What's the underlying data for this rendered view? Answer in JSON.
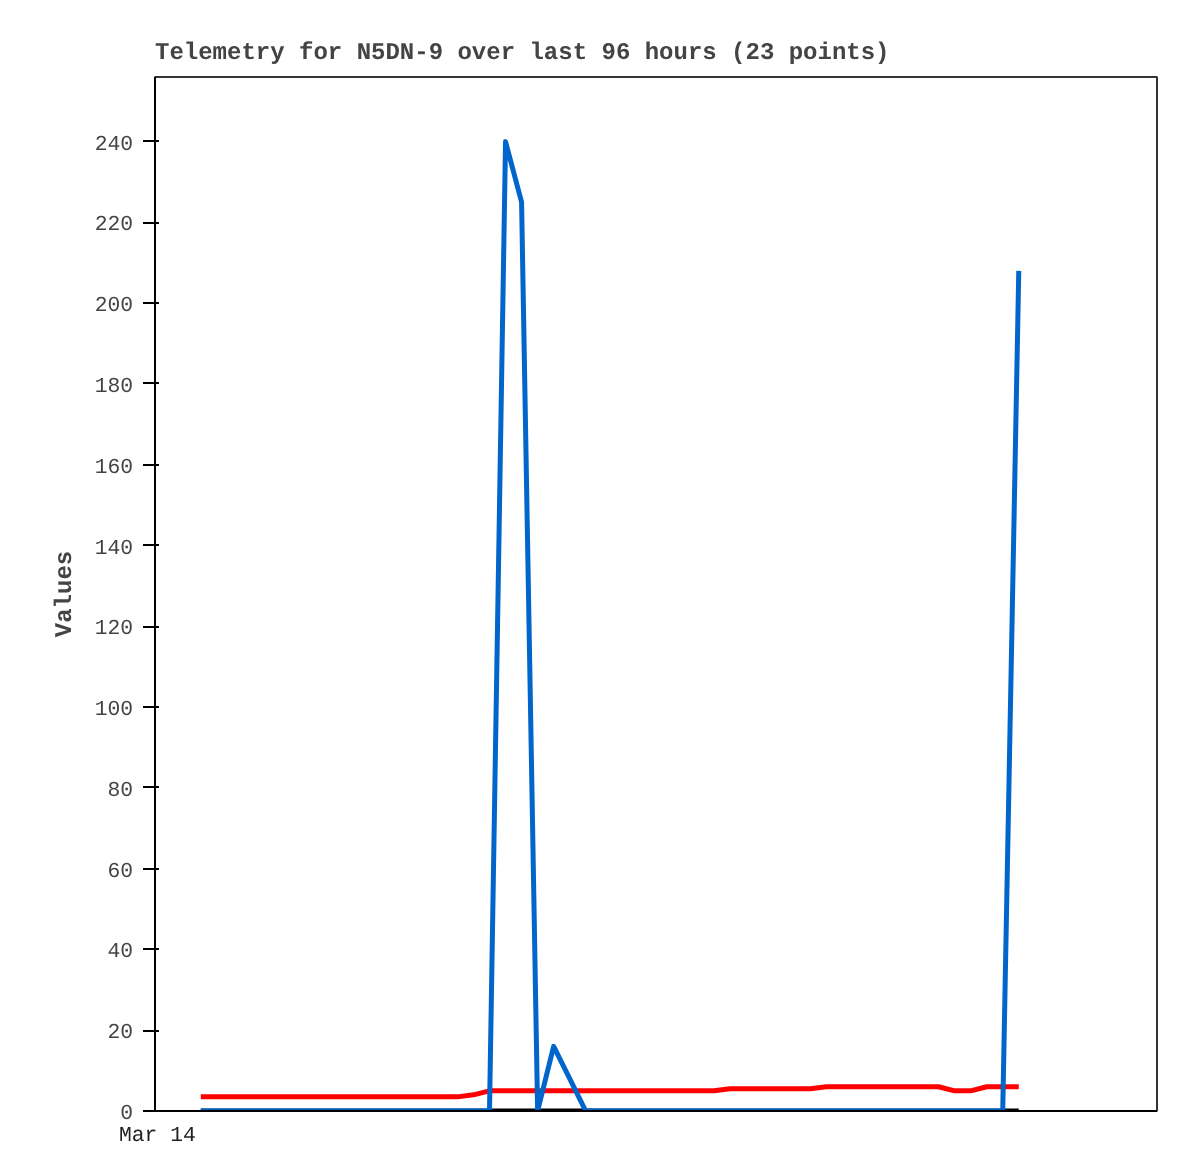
{
  "chart_data": {
    "type": "line",
    "title": "Telemetry for N5DN-9 over last 96 hours (23 points)",
    "ylabel": "Values",
    "annotations": [
      "Mar 14"
    ],
    "categories": [
      null,
      null,
      null,
      null,
      null,
      null,
      null,
      null,
      null,
      null,
      null,
      null,
      null,
      null,
      null,
      null,
      null,
      null,
      null,
      null,
      null,
      null,
      null,
      null,
      null,
      null,
      null,
      null,
      null,
      null,
      null,
      null,
      null,
      null,
      null,
      null,
      null,
      null,
      null,
      null,
      null,
      null,
      null,
      null,
      null,
      null,
      null,
      null,
      null,
      null,
      null,
      null
    ],
    "series": [
      {
        "color": "#000000",
        "values": [
          0,
          0,
          0,
          0,
          0,
          0,
          0,
          0,
          0,
          0,
          0,
          0,
          0,
          0,
          0,
          0,
          0,
          0,
          0,
          0,
          0,
          0,
          0,
          0,
          0,
          0,
          0,
          0,
          0,
          0,
          0,
          0,
          0,
          0,
          0,
          0,
          0,
          0,
          0,
          0,
          0,
          0,
          0,
          0,
          0,
          0,
          0,
          0,
          0,
          0,
          0,
          0
        ]
      },
      {
        "color": "#ff0000",
        "values": [
          3.5,
          3.5,
          3.5,
          3.5,
          3.5,
          3.5,
          3.5,
          3.5,
          3.5,
          3.5,
          3.5,
          3.5,
          3.5,
          3.5,
          3.5,
          3.5,
          3.5,
          4,
          5,
          5,
          5,
          5,
          5,
          5,
          5,
          5,
          5,
          5,
          5,
          5,
          5,
          5,
          5,
          5.5,
          5.5,
          5.5,
          5.5,
          5.5,
          5.5,
          6,
          6,
          6,
          6,
          6,
          6,
          6,
          6,
          5,
          5,
          6,
          6,
          6
        ]
      },
      {
        "color": "#0066cc",
        "values": [
          0,
          0,
          0,
          0,
          0,
          0,
          0,
          0,
          0,
          0,
          0,
          0,
          0,
          0,
          0,
          0,
          0,
          0,
          0,
          240,
          225,
          0,
          16,
          8,
          0,
          0,
          0,
          0,
          0,
          0,
          0,
          0,
          0,
          0,
          0,
          0,
          0,
          0,
          0,
          0,
          0,
          0,
          0,
          0,
          0,
          0,
          0,
          0,
          0,
          0,
          0,
          208
        ]
      }
    ],
    "ylim": [
      0,
      256
    ],
    "yticks": [
      0,
      20,
      40,
      60,
      80,
      100,
      120,
      140,
      160,
      180,
      200,
      220,
      240
    ],
    "grid": false
  }
}
